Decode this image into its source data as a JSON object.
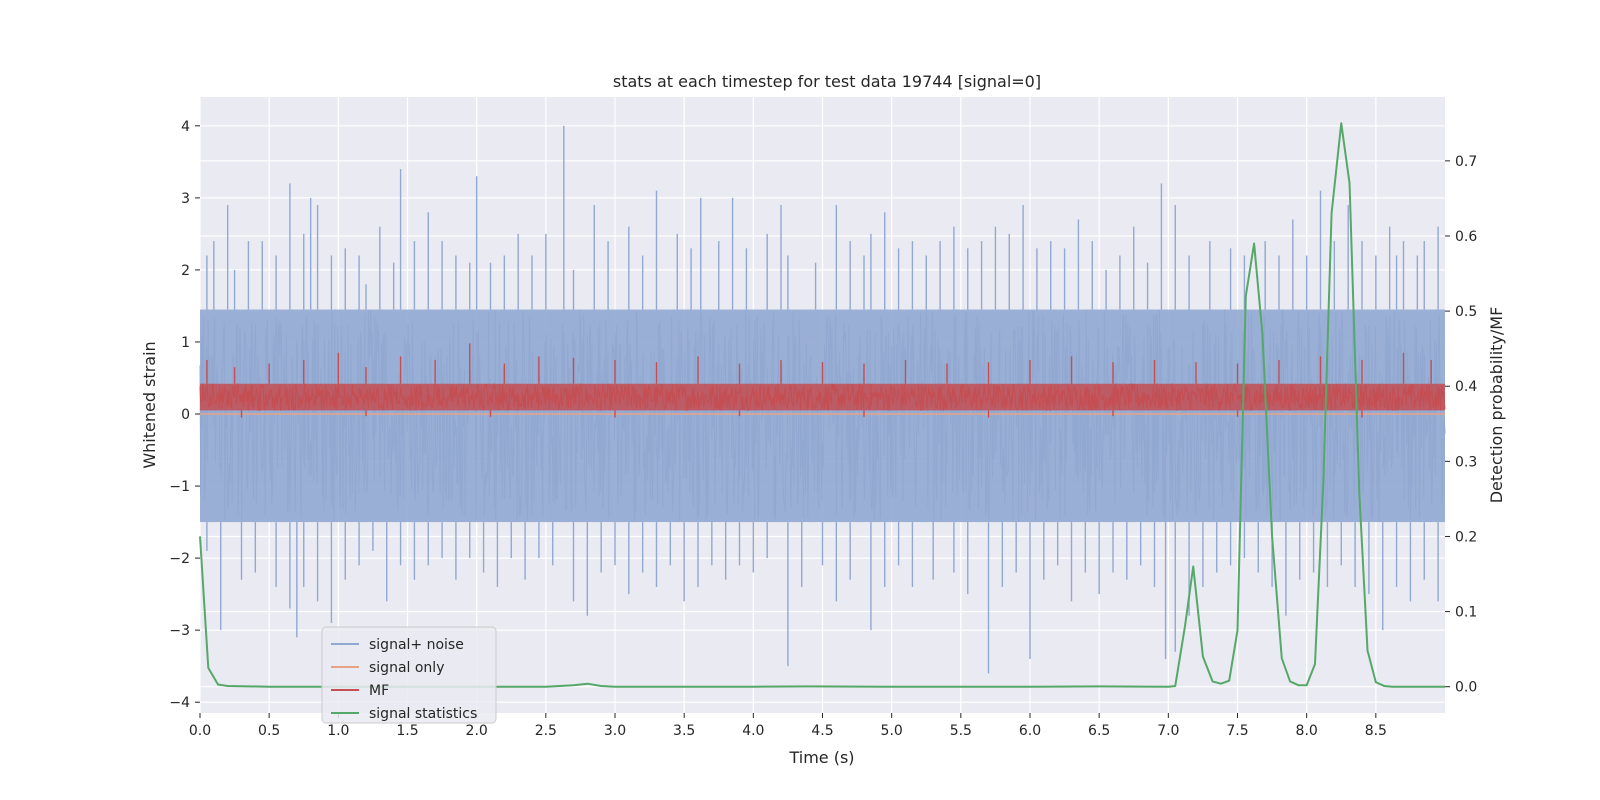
{
  "chart_data": {
    "type": "line",
    "title": "stats at each timestep for test data 19744 [signal=0]",
    "xlabel": "Time (s)",
    "ylabel": "Whitened strain",
    "y2label": "Detection probability/MF",
    "xlim": [
      0.0,
      9.0
    ],
    "ylim": [
      -4.15,
      4.4
    ],
    "y2lim": [
      -0.035,
      0.785
    ],
    "xticks": [
      "0.0",
      "0.5",
      "1.0",
      "1.5",
      "2.0",
      "2.5",
      "3.0",
      "3.5",
      "4.0",
      "4.5",
      "5.0",
      "5.5",
      "6.0",
      "6.5",
      "7.0",
      "7.5",
      "8.0",
      "8.5"
    ],
    "yticks": [
      "4",
      "3",
      "2",
      "1",
      "0",
      "−1",
      "−2",
      "−3",
      "−4"
    ],
    "y2ticks": [
      "0.7",
      "0.6",
      "0.5",
      "0.4",
      "0.3",
      "0.2",
      "0.1",
      "0.0"
    ],
    "colors": {
      "noise": "#91a8d1",
      "signal_only": "#e8a387",
      "mf": "#c44e52",
      "stats": "#55a868",
      "plot_bg": "#eaeaf2",
      "grid": "#ffffff"
    },
    "legend": {
      "placement": "lower-left",
      "entries": [
        {
          "key": "noise",
          "label": "signal+ noise"
        },
        {
          "key": "signal_only",
          "label": "signal only"
        },
        {
          "key": "mf",
          "label": "MF"
        },
        {
          "key": "stats",
          "label": "signal statistics"
        }
      ]
    },
    "series": [
      {
        "name": "signal+ noise",
        "axis": "left",
        "render": "dense_noise",
        "band_low": -1.5,
        "band_high": 1.45,
        "x_range": [
          0.0,
          9.0
        ],
        "spikes_up": [
          [
            0.05,
            2.2
          ],
          [
            0.1,
            2.4
          ],
          [
            0.2,
            2.9
          ],
          [
            0.25,
            2.0
          ],
          [
            0.35,
            2.4
          ],
          [
            0.45,
            2.4
          ],
          [
            0.55,
            2.2
          ],
          [
            0.65,
            3.2
          ],
          [
            0.75,
            2.5
          ],
          [
            0.8,
            3.0
          ],
          [
            0.85,
            2.9
          ],
          [
            0.95,
            2.2
          ],
          [
            1.05,
            2.3
          ],
          [
            1.15,
            2.2
          ],
          [
            1.2,
            1.8
          ],
          [
            1.3,
            2.6
          ],
          [
            1.4,
            2.1
          ],
          [
            1.45,
            3.4
          ],
          [
            1.55,
            2.4
          ],
          [
            1.65,
            2.8
          ],
          [
            1.75,
            2.4
          ],
          [
            1.85,
            2.2
          ],
          [
            1.95,
            2.1
          ],
          [
            2.0,
            3.3
          ],
          [
            2.1,
            2.1
          ],
          [
            2.2,
            2.2
          ],
          [
            2.3,
            2.5
          ],
          [
            2.4,
            2.2
          ],
          [
            2.5,
            2.5
          ],
          [
            2.63,
            4.0
          ],
          [
            2.7,
            2.0
          ],
          [
            2.85,
            2.9
          ],
          [
            2.95,
            2.4
          ],
          [
            3.1,
            2.6
          ],
          [
            3.2,
            2.2
          ],
          [
            3.3,
            3.1
          ],
          [
            3.45,
            2.5
          ],
          [
            3.55,
            2.3
          ],
          [
            3.62,
            3.0
          ],
          [
            3.75,
            2.4
          ],
          [
            3.85,
            3.0
          ],
          [
            3.95,
            2.3
          ],
          [
            4.1,
            2.5
          ],
          [
            4.2,
            2.9
          ],
          [
            4.25,
            2.2
          ],
          [
            4.45,
            2.1
          ],
          [
            4.6,
            2.9
          ],
          [
            4.7,
            2.4
          ],
          [
            4.8,
            2.2
          ],
          [
            4.85,
            2.5
          ],
          [
            4.95,
            2.8
          ],
          [
            5.05,
            2.3
          ],
          [
            5.15,
            2.4
          ],
          [
            5.25,
            2.2
          ],
          [
            5.35,
            2.4
          ],
          [
            5.45,
            2.6
          ],
          [
            5.55,
            2.3
          ],
          [
            5.65,
            2.4
          ],
          [
            5.75,
            2.6
          ],
          [
            5.85,
            2.5
          ],
          [
            5.95,
            2.9
          ],
          [
            6.05,
            2.3
          ],
          [
            6.15,
            2.4
          ],
          [
            6.25,
            2.3
          ],
          [
            6.35,
            2.7
          ],
          [
            6.45,
            2.4
          ],
          [
            6.55,
            2.0
          ],
          [
            6.65,
            2.2
          ],
          [
            6.75,
            2.6
          ],
          [
            6.85,
            2.1
          ],
          [
            6.95,
            3.2
          ],
          [
            7.05,
            2.9
          ],
          [
            7.15,
            2.2
          ],
          [
            7.3,
            2.4
          ],
          [
            7.45,
            2.3
          ],
          [
            7.55,
            2.2
          ],
          [
            7.7,
            2.4
          ],
          [
            7.8,
            2.2
          ],
          [
            7.9,
            2.7
          ],
          [
            8.0,
            2.2
          ],
          [
            8.1,
            3.1
          ],
          [
            8.2,
            2.4
          ],
          [
            8.3,
            2.9
          ],
          [
            8.4,
            2.4
          ],
          [
            8.5,
            2.2
          ],
          [
            8.6,
            2.6
          ],
          [
            8.65,
            2.2
          ],
          [
            8.7,
            2.4
          ],
          [
            8.8,
            2.2
          ],
          [
            8.85,
            2.4
          ],
          [
            8.95,
            2.6
          ]
        ],
        "spikes_down": [
          [
            0.05,
            -1.9
          ],
          [
            0.15,
            -3.0
          ],
          [
            0.3,
            -2.3
          ],
          [
            0.4,
            -2.2
          ],
          [
            0.55,
            -2.4
          ],
          [
            0.65,
            -2.7
          ],
          [
            0.7,
            -3.1
          ],
          [
            0.75,
            -2.4
          ],
          [
            0.85,
            -2.6
          ],
          [
            0.95,
            -2.9
          ],
          [
            1.05,
            -2.3
          ],
          [
            1.15,
            -2.1
          ],
          [
            1.25,
            -1.9
          ],
          [
            1.35,
            -2.6
          ],
          [
            1.45,
            -2.1
          ],
          [
            1.55,
            -2.3
          ],
          [
            1.65,
            -2.1
          ],
          [
            1.75,
            -2.0
          ],
          [
            1.85,
            -2.3
          ],
          [
            1.95,
            -2.0
          ],
          [
            2.05,
            -2.2
          ],
          [
            2.15,
            -2.4
          ],
          [
            2.25,
            -2.0
          ],
          [
            2.35,
            -2.3
          ],
          [
            2.45,
            -2.0
          ],
          [
            2.55,
            -2.1
          ],
          [
            2.7,
            -2.6
          ],
          [
            2.8,
            -2.8
          ],
          [
            2.9,
            -2.2
          ],
          [
            3.0,
            -2.1
          ],
          [
            3.1,
            -2.5
          ],
          [
            3.2,
            -2.2
          ],
          [
            3.3,
            -2.4
          ],
          [
            3.4,
            -2.1
          ],
          [
            3.5,
            -2.6
          ],
          [
            3.6,
            -2.4
          ],
          [
            3.7,
            -2.1
          ],
          [
            3.8,
            -2.3
          ],
          [
            3.9,
            -2.1
          ],
          [
            4.0,
            -2.2
          ],
          [
            4.1,
            -2.0
          ],
          [
            4.25,
            -3.5
          ],
          [
            4.35,
            -2.4
          ],
          [
            4.5,
            -2.1
          ],
          [
            4.6,
            -2.6
          ],
          [
            4.7,
            -2.3
          ],
          [
            4.85,
            -3.0
          ],
          [
            4.95,
            -2.4
          ],
          [
            5.05,
            -2.1
          ],
          [
            5.15,
            -2.4
          ],
          [
            5.3,
            -2.3
          ],
          [
            5.45,
            -2.2
          ],
          [
            5.55,
            -2.5
          ],
          [
            5.7,
            -3.6
          ],
          [
            5.8,
            -2.4
          ],
          [
            5.9,
            -2.2
          ],
          [
            6.0,
            -3.4
          ],
          [
            6.1,
            -2.3
          ],
          [
            6.2,
            -2.1
          ],
          [
            6.3,
            -2.6
          ],
          [
            6.4,
            -2.2
          ],
          [
            6.5,
            -2.5
          ],
          [
            6.6,
            -2.2
          ],
          [
            6.7,
            -2.3
          ],
          [
            6.8,
            -2.1
          ],
          [
            6.9,
            -2.4
          ],
          [
            6.98,
            -3.4
          ],
          [
            7.05,
            -3.3
          ],
          [
            7.15,
            -2.8
          ],
          [
            7.25,
            -2.4
          ],
          [
            7.35,
            -2.2
          ],
          [
            7.45,
            -2.1
          ],
          [
            7.55,
            -2.0
          ],
          [
            7.65,
            -2.2
          ],
          [
            7.75,
            -2.4
          ],
          [
            7.85,
            -2.8
          ],
          [
            7.95,
            -2.3
          ],
          [
            8.05,
            -2.2
          ],
          [
            8.15,
            -2.4
          ],
          [
            8.25,
            -2.1
          ],
          [
            8.35,
            -2.4
          ],
          [
            8.45,
            -2.5
          ],
          [
            8.55,
            -3.0
          ],
          [
            8.65,
            -2.4
          ],
          [
            8.75,
            -2.6
          ],
          [
            8.85,
            -2.3
          ],
          [
            8.95,
            -2.6
          ]
        ]
      },
      {
        "name": "signal only",
        "axis": "left",
        "x": [
          0.0,
          9.0
        ],
        "y": [
          0.0,
          0.0
        ]
      },
      {
        "name": "MF",
        "axis": "left",
        "render": "dense_noise",
        "band_low": 0.05,
        "band_high": 0.42,
        "x_range": [
          0.0,
          9.0
        ],
        "spikes_up": [
          [
            0.05,
            0.75
          ],
          [
            0.25,
            0.65
          ],
          [
            0.5,
            0.7
          ],
          [
            0.75,
            0.75
          ],
          [
            1.0,
            0.85
          ],
          [
            1.2,
            0.65
          ],
          [
            1.45,
            0.8
          ],
          [
            1.7,
            0.75
          ],
          [
            1.95,
            0.98
          ],
          [
            2.2,
            0.7
          ],
          [
            2.45,
            0.8
          ],
          [
            2.7,
            0.78
          ],
          [
            3.0,
            0.75
          ],
          [
            3.3,
            0.72
          ],
          [
            3.6,
            0.8
          ],
          [
            3.9,
            0.7
          ],
          [
            4.2,
            0.75
          ],
          [
            4.5,
            0.72
          ],
          [
            4.8,
            0.7
          ],
          [
            5.1,
            0.75
          ],
          [
            5.4,
            0.7
          ],
          [
            5.7,
            0.72
          ],
          [
            6.0,
            0.75
          ],
          [
            6.3,
            0.8
          ],
          [
            6.6,
            0.72
          ],
          [
            6.9,
            0.75
          ],
          [
            7.2,
            0.72
          ],
          [
            7.5,
            0.7
          ],
          [
            7.8,
            0.75
          ],
          [
            8.1,
            0.8
          ],
          [
            8.4,
            0.75
          ],
          [
            8.7,
            0.85
          ],
          [
            8.9,
            0.75
          ]
        ],
        "spikes_down": [
          [
            0.3,
            -0.05
          ],
          [
            1.2,
            -0.03
          ],
          [
            2.1,
            -0.04
          ],
          [
            3.0,
            -0.05
          ],
          [
            3.9,
            -0.03
          ],
          [
            4.8,
            -0.04
          ],
          [
            5.7,
            -0.05
          ],
          [
            6.6,
            -0.03
          ],
          [
            7.5,
            -0.04
          ],
          [
            8.4,
            -0.05
          ]
        ]
      },
      {
        "name": "signal statistics",
        "axis": "right",
        "x": [
          0.0,
          0.06,
          0.13,
          0.2,
          0.5,
          1.0,
          2.0,
          2.5,
          2.7,
          2.8,
          2.9,
          3.0,
          4.0,
          4.4,
          5.0,
          6.0,
          6.5,
          7.0,
          7.05,
          7.12,
          7.18,
          7.25,
          7.32,
          7.38,
          7.44,
          7.5,
          7.56,
          7.62,
          7.68,
          7.75,
          7.82,
          7.88,
          7.94,
          8.0,
          8.06,
          8.12,
          8.18,
          8.25,
          8.31,
          8.38,
          8.44,
          8.5,
          8.56,
          8.62,
          8.68,
          8.75,
          9.0
        ],
        "y": [
          0.2,
          0.025,
          0.003,
          0.001,
          0.0,
          0.0,
          0.0,
          0.0,
          0.002,
          0.004,
          0.001,
          0.0,
          0.0,
          0.0005,
          0.0,
          0.0,
          0.0005,
          0.0,
          0.001,
          0.08,
          0.16,
          0.04,
          0.007,
          0.004,
          0.008,
          0.075,
          0.52,
          0.59,
          0.47,
          0.2,
          0.038,
          0.007,
          0.002,
          0.002,
          0.03,
          0.27,
          0.63,
          0.75,
          0.67,
          0.26,
          0.048,
          0.006,
          0.001,
          0.0,
          0.0,
          0.0,
          0.0
        ]
      }
    ]
  }
}
